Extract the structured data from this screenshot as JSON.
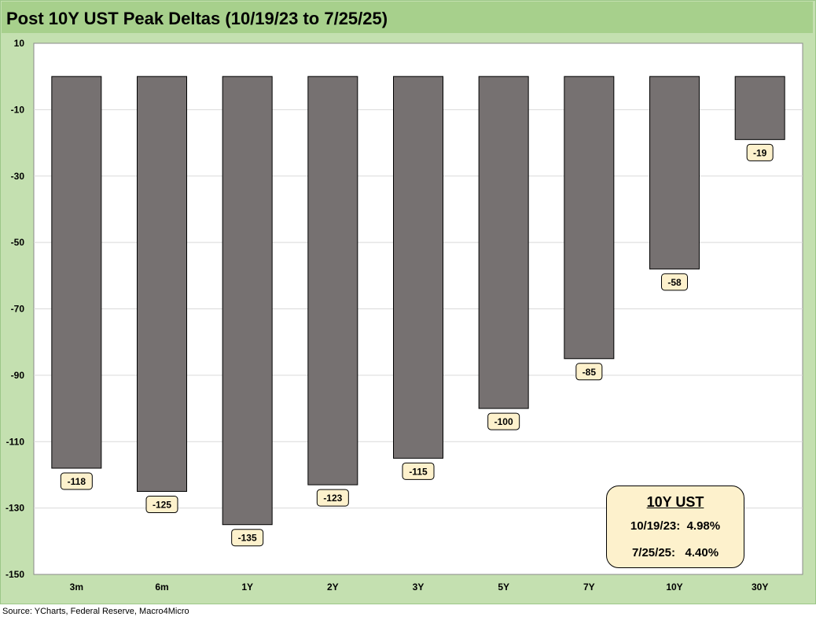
{
  "title": "Post 10Y UST Peak Deltas (10/19/23 to 7/25/25)",
  "source": "Source: YCharts, Federal Reserve, Macro4Micro",
  "colors": {
    "bar": "#767171",
    "frame": "#c4e0b0",
    "title_bar": "#a7d08c",
    "label_fill": "#fdf1cc",
    "grid": "#d9d9d9"
  },
  "annotation": {
    "title": "10Y UST",
    "lines": [
      "10/19/23:  4.98%",
      "7/25/25:   4.40%"
    ]
  },
  "chart_data": {
    "type": "bar",
    "categories": [
      "3m",
      "6m",
      "1Y",
      "2Y",
      "3Y",
      "5Y",
      "7Y",
      "10Y",
      "30Y"
    ],
    "values": [
      -118,
      -125,
      -135,
      -123,
      -115,
      -100,
      -85,
      -58,
      -19
    ],
    "data_labels": [
      "-118",
      "-125",
      "-135",
      "-123",
      "-115",
      "-100",
      "-85",
      "-58",
      "-19"
    ],
    "title": "Post 10Y UST Peak Deltas (10/19/23 to 7/25/25)",
    "xlabel": "",
    "ylabel": "",
    "ylim": [
      -150,
      10
    ],
    "yticks": [
      "10",
      "-10",
      "-30",
      "-50",
      "-70",
      "-90",
      "-110",
      "-130",
      "-150"
    ],
    "grid": true,
    "legend": "none"
  }
}
